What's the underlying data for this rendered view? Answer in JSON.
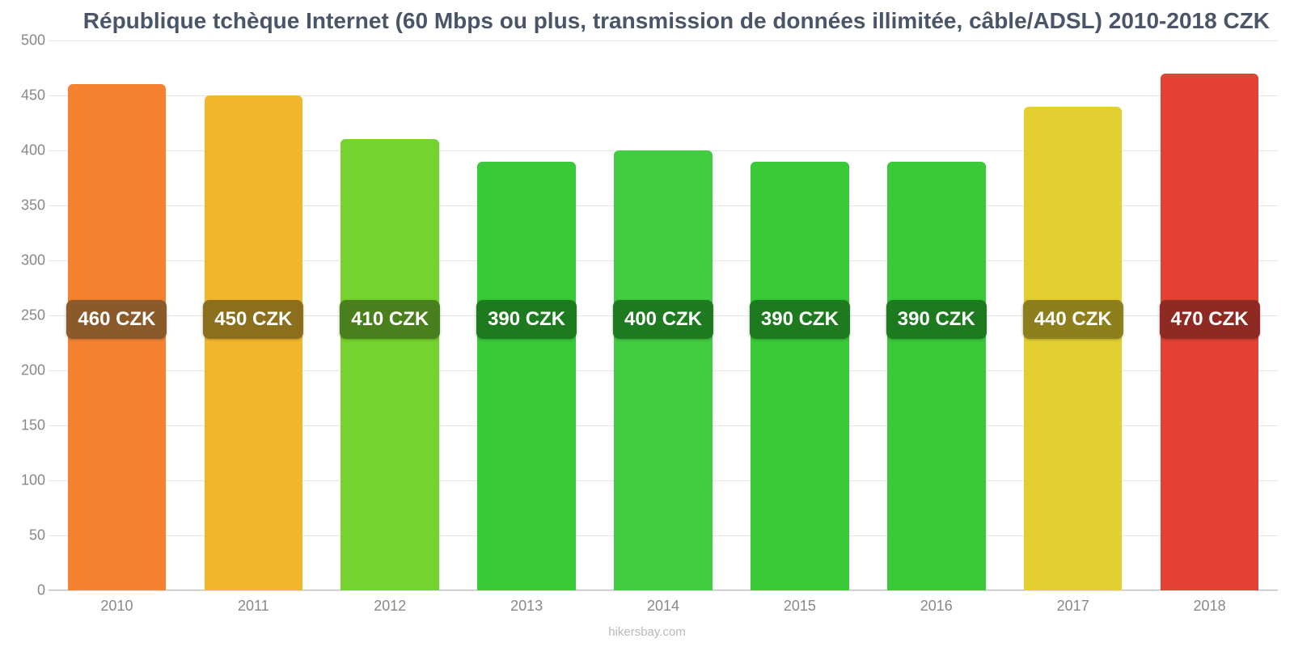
{
  "chart": {
    "type": "bar",
    "title": "République tchèque Internet (60 Mbps ou plus, transmission de données illimitée, câble/ADSL) 2010-2018 CZK",
    "title_fontsize": 28,
    "title_color": "#4a5568",
    "background_color": "#ffffff",
    "grid_color": "#e6e6e6",
    "tick_font_color": "#888888",
    "tick_fontsize": 18,
    "value_label_fontsize": 24,
    "value_label_text_color": "#ffffff",
    "bar_width_ratio": 0.72,
    "bar_border_radius": 6,
    "ylim": [
      0,
      500
    ],
    "yticks": [
      0,
      50,
      100,
      150,
      200,
      250,
      300,
      350,
      400,
      450,
      500
    ],
    "badge_center_value": 245,
    "categories": [
      "2010",
      "2011",
      "2012",
      "2013",
      "2014",
      "2015",
      "2016",
      "2017",
      "2018"
    ],
    "points": [
      {
        "value": 460,
        "label": "460 CZK",
        "bar_color": "#f58231",
        "badge_color": "#8b5a2b"
      },
      {
        "value": 450,
        "label": "450 CZK",
        "bar_color": "#f2b62e",
        "badge_color": "#8c6f1c"
      },
      {
        "value": 410,
        "label": "410 CZK",
        "bar_color": "#74d32e",
        "badge_color": "#4a7f1d"
      },
      {
        "value": 390,
        "label": "390 CZK",
        "bar_color": "#39c939",
        "badge_color": "#1e7a1e"
      },
      {
        "value": 400,
        "label": "400 CZK",
        "bar_color": "#42cc42",
        "badge_color": "#1e7a1e"
      },
      {
        "value": 390,
        "label": "390 CZK",
        "bar_color": "#39c939",
        "badge_color": "#1e7a1e"
      },
      {
        "value": 390,
        "label": "390 CZK",
        "bar_color": "#39c939",
        "badge_color": "#1e7a1e"
      },
      {
        "value": 440,
        "label": "440 CZK",
        "bar_color": "#e3cf30",
        "badge_color": "#8c7f1c"
      },
      {
        "value": 470,
        "label": "470 CZK",
        "bar_color": "#e34234",
        "badge_color": "#8e2a22"
      }
    ],
    "source": "hikersbay.com"
  }
}
